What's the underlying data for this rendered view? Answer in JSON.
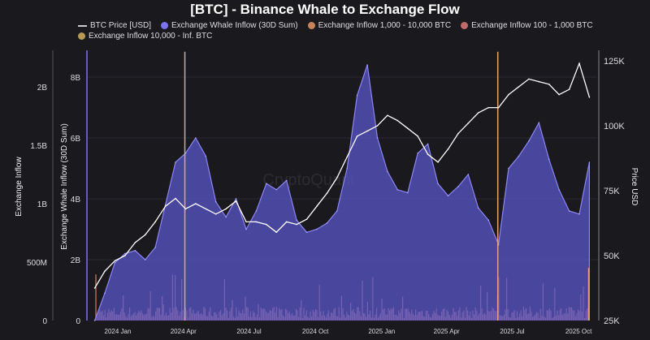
{
  "title": "[BTC] - Binance Whale to Exchange Flow",
  "legend": [
    {
      "label": "BTC Price [USD]",
      "color": "#cccccc",
      "shape": "line"
    },
    {
      "label": "Exchange Whale Inflow (30D Sum)",
      "color": "#7b73f0",
      "shape": "dot"
    },
    {
      "label": "Exchange Inflow 1,000 - 10,000 BTC",
      "color": "#c7835c",
      "shape": "dot"
    },
    {
      "label": "Exchange Inflow 100 - 1,000 BTC",
      "color": "#c06a6a",
      "shape": "dot"
    },
    {
      "label": "Exchange Inflow 10,000 - Inf. BTC",
      "color": "#b59a55",
      "shape": "dot"
    }
  ],
  "watermark": "CryptoQuant",
  "chart_data": {
    "type": "area",
    "title": "[BTC] - Binance Whale to Exchange Flow",
    "x_start": "2023-12-09",
    "x_step_days": 14,
    "x_tick_labels": [
      "2024 Jan",
      "2024 Apr",
      "2024 Jul",
      "2024 Oct",
      "2025 Jan",
      "2025 Apr",
      "2025 Jul",
      "2025 Oct"
    ],
    "axes": {
      "outer_left": {
        "label": "Exchange Inflow",
        "ticks": [
          "0",
          "500M",
          "1B",
          "1.5B",
          "2B"
        ],
        "range": [
          0,
          2.3
        ]
      },
      "inner_left": {
        "label": "Exchange Whale Inflow (30D Sum)",
        "ticks": [
          "0",
          "2B",
          "4B",
          "6B",
          "8B"
        ],
        "range": [
          0,
          8.9
        ]
      },
      "right": {
        "label": "Price USD",
        "ticks": [
          "25K",
          "50K",
          "75K",
          "100K",
          "125K"
        ],
        "range": [
          25,
          130
        ]
      }
    },
    "series": [
      {
        "name": "Exchange Whale Inflow (30D Sum)",
        "unit": "B",
        "axis": "inner_left",
        "values": [
          0,
          0.9,
          1.9,
          2.2,
          2.3,
          2.0,
          2.4,
          3.8,
          5.2,
          5.5,
          6.0,
          5.4,
          3.9,
          3.4,
          4.0,
          3.0,
          3.6,
          4.5,
          4.3,
          4.6,
          3.3,
          2.9,
          3.0,
          3.2,
          3.6,
          5.0,
          7.4,
          8.4,
          6.0,
          4.9,
          4.3,
          4.2,
          5.5,
          5.8,
          4.5,
          4.1,
          4.4,
          4.8,
          3.7,
          3.3,
          2.5,
          5.0,
          5.4,
          5.9,
          6.5,
          5.3,
          4.3,
          3.6,
          3.5,
          5.2
        ]
      },
      {
        "name": "BTC Price [USD]",
        "unit": "K",
        "axis": "right",
        "values": [
          37.5,
          44,
          48,
          50,
          55,
          58,
          63,
          69,
          72,
          68,
          70,
          68,
          66,
          68,
          71,
          63,
          63,
          62,
          59,
          63,
          62,
          64,
          69,
          74,
          80,
          88,
          96,
          98,
          100,
          104,
          102,
          99,
          96,
          89,
          86,
          91,
          97,
          101,
          105,
          107,
          107,
          112,
          115,
          118,
          117,
          116,
          112,
          114,
          124,
          111
        ]
      },
      {
        "name": "Exchange Inflow spikes",
        "unit": "B",
        "axis": "outer_left",
        "points": [
          {
            "date": "2024-04-12",
            "value": 2.3
          },
          {
            "date": "2025-06-20",
            "value": 2.3
          },
          {
            "date": "2025-10-24",
            "value": 0.45
          }
        ]
      }
    ],
    "grid": true,
    "legend_position": "top-center"
  }
}
